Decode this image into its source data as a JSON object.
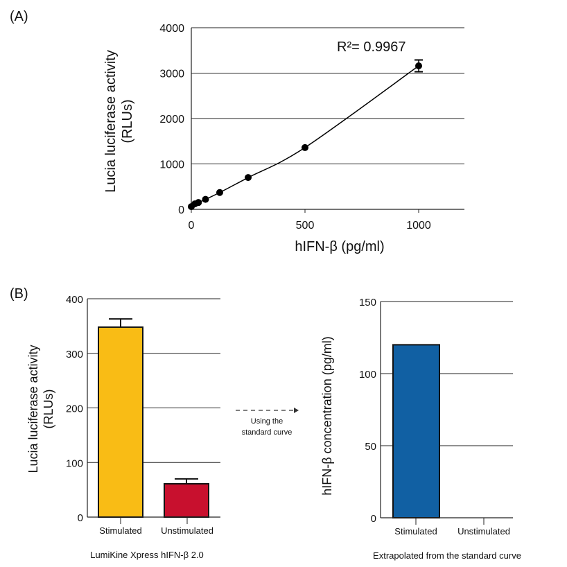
{
  "panels": {
    "a_label": "(A)",
    "b_label": "(B)"
  },
  "chart_data": [
    {
      "type": "scatter",
      "panel": "A",
      "xlabel": "hIFN-β (pg/ml)",
      "ylabel_line1": "Lucia luciferase activity",
      "ylabel_line2": "(RLUs)",
      "xlim": [
        0,
        1200
      ],
      "ylim": [
        0,
        4000
      ],
      "xticks": [
        0,
        500,
        1000
      ],
      "yticks": [
        0,
        1000,
        2000,
        3000,
        4000
      ],
      "grid": "horizontal",
      "annotation": "R²= 0.9967",
      "x": [
        0,
        15.6,
        31.25,
        62.5,
        125,
        250,
        500,
        1000
      ],
      "y": [
        60,
        120,
        150,
        220,
        370,
        700,
        1360,
        3160
      ],
      "error": [
        0,
        0,
        0,
        0,
        0,
        0,
        0,
        130
      ],
      "fit_line": true,
      "color": "#000000"
    },
    {
      "type": "bar",
      "panel": "B-left",
      "categories": [
        "Stimulated",
        "Unstimulated"
      ],
      "values": [
        348,
        61
      ],
      "error": [
        15,
        9
      ],
      "colors": [
        "#F9BC15",
        "#C8102E"
      ],
      "ylabel_line1": "Lucia luciferase activity",
      "ylabel_line2": "(RLUs)",
      "ylim": [
        0,
        400
      ],
      "yticks": [
        0,
        100,
        200,
        300,
        400
      ],
      "grid": "horizontal",
      "caption": "LumiKine Xpress hIFN-β 2.0"
    },
    {
      "type": "bar",
      "panel": "B-right",
      "categories": [
        "Stimulated",
        "Unstimulated"
      ],
      "values": [
        120,
        0
      ],
      "colors": [
        "#1160A3",
        "#1160A3"
      ],
      "ylabel": "hIFN-β concentration (pg/ml)",
      "ylim": [
        0,
        150
      ],
      "yticks": [
        0,
        50,
        100,
        150
      ],
      "grid": "horizontal",
      "caption": "Extrapolated from the standard curve"
    }
  ],
  "arrow": {
    "line1": "Using the",
    "line2": "standard curve"
  }
}
